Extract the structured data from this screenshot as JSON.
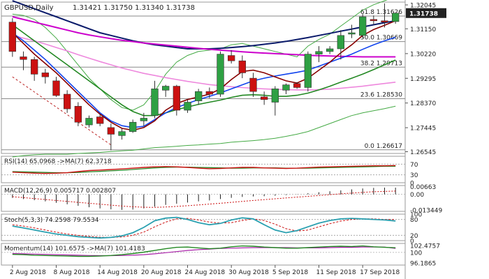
{
  "chart_data": {
    "type": "candlestick",
    "header": {
      "symbol_tf": "GBPUSD,Daily",
      "ohlc_text": "1.31421 1.31750 1.31340 1.31738"
    },
    "x_labels": [
      "2 Aug 2018",
      "8 Aug 2018",
      "14 Aug 2018",
      "20 Aug 2018",
      "24 Aug 2018",
      "30 Aug 2018",
      "5 Sep 2018",
      "11 Sep 2018",
      "17 Sep 2018"
    ],
    "x_label_index": [
      0,
      4,
      8,
      12,
      16,
      20,
      24,
      28,
      32
    ],
    "price_axis": {
      "ticks": [
        "1.32045",
        "1.31150",
        "1.30220",
        "1.29295",
        "1.28370",
        "1.27445",
        "1.26545"
      ],
      "tick_values": [
        1.32045,
        1.3115,
        1.3022,
        1.29295,
        1.2837,
        1.27445,
        1.26545
      ],
      "ylim": [
        1.2648,
        1.3215
      ],
      "current_price": "1.31738",
      "current_value": 1.31738
    },
    "fib_levels": [
      {
        "label": "61.8 1.31626",
        "value": 1.31626
      },
      {
        "label": "50.0 1.30669",
        "value": 1.30669
      },
      {
        "label": "38.2 1.29713",
        "value": 1.29713
      },
      {
        "label": "23.6 1.28530",
        "value": 1.2853
      },
      {
        "label": "0.0 1.26617",
        "value": 1.26617
      }
    ],
    "candles": [
      {
        "o": 1.314,
        "h": 1.3155,
        "l": 1.301,
        "c": 1.303
      },
      {
        "o": 1.301,
        "h": 1.303,
        "l": 1.296,
        "c": 1.3
      },
      {
        "o": 1.3,
        "h": 1.301,
        "l": 1.292,
        "c": 1.2945
      },
      {
        "o": 1.295,
        "h": 1.2965,
        "l": 1.291,
        "c": 1.2935
      },
      {
        "o": 1.292,
        "h": 1.2935,
        "l": 1.286,
        "c": 1.2865
      },
      {
        "o": 1.287,
        "h": 1.2885,
        "l": 1.28,
        "c": 1.2815
      },
      {
        "o": 1.2825,
        "h": 1.284,
        "l": 1.275,
        "c": 1.2765
      },
      {
        "o": 1.2755,
        "h": 1.279,
        "l": 1.2745,
        "c": 1.278
      },
      {
        "o": 1.2785,
        "h": 1.2795,
        "l": 1.275,
        "c": 1.276
      },
      {
        "o": 1.2745,
        "h": 1.276,
        "l": 1.266,
        "c": 1.272
      },
      {
        "o": 1.2715,
        "h": 1.274,
        "l": 1.27,
        "c": 1.273
      },
      {
        "o": 1.273,
        "h": 1.2775,
        "l": 1.2725,
        "c": 1.2765
      },
      {
        "o": 1.277,
        "h": 1.28,
        "l": 1.275,
        "c": 1.278
      },
      {
        "o": 1.279,
        "h": 1.292,
        "l": 1.278,
        "c": 1.289
      },
      {
        "o": 1.2885,
        "h": 1.2905,
        "l": 1.286,
        "c": 1.29
      },
      {
        "o": 1.29,
        "h": 1.2905,
        "l": 1.279,
        "c": 1.281
      },
      {
        "o": 1.281,
        "h": 1.285,
        "l": 1.28,
        "c": 1.284
      },
      {
        "o": 1.2845,
        "h": 1.289,
        "l": 1.283,
        "c": 1.288
      },
      {
        "o": 1.288,
        "h": 1.2895,
        "l": 1.2855,
        "c": 1.287
      },
      {
        "o": 1.287,
        "h": 1.303,
        "l": 1.286,
        "c": 1.302
      },
      {
        "o": 1.3015,
        "h": 1.3035,
        "l": 1.2985,
        "c": 1.2995
      },
      {
        "o": 1.2995,
        "h": 1.3015,
        "l": 1.293,
        "c": 1.295
      },
      {
        "o": 1.293,
        "h": 1.295,
        "l": 1.286,
        "c": 1.288
      },
      {
        "o": 1.286,
        "h": 1.288,
        "l": 1.283,
        "c": 1.285
      },
      {
        "o": 1.284,
        "h": 1.29,
        "l": 1.279,
        "c": 1.289
      },
      {
        "o": 1.2885,
        "h": 1.291,
        "l": 1.287,
        "c": 1.2905
      },
      {
        "o": 1.291,
        "h": 1.2915,
        "l": 1.289,
        "c": 1.2895
      },
      {
        "o": 1.2895,
        "h": 1.303,
        "l": 1.288,
        "c": 1.302
      },
      {
        "o": 1.302,
        "h": 1.305,
        "l": 1.299,
        "c": 1.303
      },
      {
        "o": 1.303,
        "h": 1.305,
        "l": 1.302,
        "c": 1.304
      },
      {
        "o": 1.304,
        "h": 1.311,
        "l": 1.3,
        "c": 1.309
      },
      {
        "o": 1.3095,
        "h": 1.313,
        "l": 1.308,
        "c": 1.31
      },
      {
        "o": 1.309,
        "h": 1.317,
        "l": 1.308,
        "c": 1.316
      },
      {
        "o": 1.315,
        "h": 1.3165,
        "l": 1.313,
        "c": 1.3145
      },
      {
        "o": 1.3145,
        "h": 1.321,
        "l": 1.312,
        "c": 1.314
      },
      {
        "o": 1.3142,
        "h": 1.3175,
        "l": 1.3134,
        "c": 1.31738
      }
    ],
    "ma_price": [
      {
        "name": "navy",
        "color": "#0a1a6a",
        "values": [
          1.322,
          1.3205,
          1.319,
          1.3175,
          1.316,
          1.3145,
          1.313,
          1.3115,
          1.31,
          1.309,
          1.308,
          1.307,
          1.3062,
          1.3055,
          1.305,
          1.3045,
          1.304,
          1.304,
          1.304,
          1.3042,
          1.3045,
          1.3048,
          1.3052,
          1.3057,
          1.3062,
          1.3068,
          1.3075,
          1.3082,
          1.309,
          1.3098,
          1.3106,
          1.3114,
          1.3122,
          1.313,
          1.3138,
          1.3145
        ]
      },
      {
        "name": "magenta",
        "color": "#cc00cc",
        "values": [
          1.316,
          1.315,
          1.314,
          1.313,
          1.312,
          1.311,
          1.31,
          1.3092,
          1.3085,
          1.3078,
          1.3072,
          1.3067,
          1.3062,
          1.3058,
          1.3054,
          1.305,
          1.3046,
          1.3042,
          1.3038,
          1.3035,
          1.3032,
          1.3029,
          1.3026,
          1.3024,
          1.3022,
          1.302,
          1.3018,
          1.3016,
          1.3014,
          1.3013,
          1.3012,
          1.3011,
          1.301,
          1.301,
          1.301,
          1.301
        ]
      },
      {
        "name": "pink",
        "color": "#ee88dd",
        "values": [
          1.309,
          1.308,
          1.307,
          1.3058,
          1.3045,
          1.3032,
          1.3018,
          1.3005,
          1.2992,
          1.298,
          1.2968,
          1.2958,
          1.2948,
          1.294,
          1.2932,
          1.2925,
          1.2918,
          1.2912,
          1.2906,
          1.2902,
          1.2898,
          1.2895,
          1.2892,
          1.289,
          1.2888,
          1.2887,
          1.2886,
          1.2886,
          1.2887,
          1.2889,
          1.2892,
          1.2896,
          1.29,
          1.2905,
          1.291,
          1.2915
        ]
      },
      {
        "name": "green",
        "color": "#228822",
        "values": [
          1.313,
          1.31,
          1.307,
          1.304,
          1.301,
          1.298,
          1.295,
          1.292,
          1.289,
          1.286,
          1.283,
          1.2805,
          1.279,
          1.279,
          1.28,
          1.2812,
          1.2822,
          1.2832,
          1.284,
          1.2848,
          1.2858,
          1.2866,
          1.2868,
          1.2866,
          1.2862,
          1.2862,
          1.2866,
          1.2874,
          1.2886,
          1.29,
          1.2915,
          1.293,
          1.2945,
          1.2962,
          1.298,
          1.2998
        ]
      },
      {
        "name": "blue",
        "color": "#1144ee",
        "values": [
          1.31,
          1.307,
          1.3035,
          1.3,
          1.296,
          1.292,
          1.288,
          1.284,
          1.28,
          1.277,
          1.2752,
          1.2745,
          1.275,
          1.2775,
          1.28,
          1.282,
          1.2835,
          1.285,
          1.2862,
          1.2875,
          1.289,
          1.2905,
          1.292,
          1.293,
          1.2938,
          1.2945,
          1.2952,
          1.296,
          1.2975,
          1.299,
          1.3005,
          1.302,
          1.3038,
          1.3055,
          1.307,
          1.3083
        ]
      },
      {
        "name": "maroon",
        "color": "#880000",
        "values": [
          1.31,
          1.306,
          1.302,
          1.2985,
          1.295,
          1.291,
          1.287,
          1.283,
          1.2795,
          1.2765,
          1.2742,
          1.2735,
          1.2745,
          1.277,
          1.281,
          1.2835,
          1.285,
          1.286,
          1.287,
          1.289,
          1.2925,
          1.2955,
          1.296,
          1.295,
          1.2935,
          1.292,
          1.2912,
          1.293,
          1.296,
          1.299,
          1.3025,
          1.3055,
          1.309,
          1.3112,
          1.3128,
          1.3145
        ]
      }
    ],
    "bands": {
      "color": "#44aa44",
      "upper": [
        1.317,
        1.3165,
        1.315,
        1.312,
        1.308,
        1.303,
        1.298,
        1.293,
        1.289,
        1.285,
        1.282,
        1.281,
        1.283,
        1.288,
        1.2945,
        1.299,
        1.3015,
        1.303,
        1.3035,
        1.304,
        1.3055,
        1.306,
        1.305,
        1.304,
        1.303,
        1.302,
        1.301,
        1.305,
        1.3075,
        1.3095,
        1.3125,
        1.3155,
        1.3185,
        1.3205,
        1.322,
        1.3235
      ],
      "lower": [
        1.2635,
        1.264,
        1.2643,
        1.2645,
        1.2645,
        1.2645,
        1.2648,
        1.265,
        1.2652,
        1.2655,
        1.2658,
        1.266,
        1.2665,
        1.267,
        1.2672,
        1.2675,
        1.2678,
        1.268,
        1.2683,
        1.2685,
        1.269,
        1.2693,
        1.2696,
        1.27,
        1.2705,
        1.2712,
        1.272,
        1.273,
        1.2745,
        1.276,
        1.2775,
        1.279,
        1.28,
        1.2808,
        1.2816,
        1.2825
      ]
    },
    "trend_line": {
      "color": "#bb2222",
      "from_value": 1.2935,
      "to_value": 1.268,
      "from_index": 0,
      "to_index": 9
    },
    "rsi": {
      "label": "RSI(14) 65.0968 ->MA(7) 62.3718",
      "ticks": [
        "70",
        "30",
        "0"
      ],
      "tick_values": [
        70,
        30,
        0
      ],
      "ylim": [
        0,
        100
      ],
      "rsi": [
        40,
        38,
        36,
        35,
        36,
        38,
        42,
        46,
        48,
        50,
        52,
        55,
        58,
        60,
        61,
        60,
        58,
        55,
        53,
        54,
        56,
        58,
        58,
        56,
        55,
        54,
        55,
        57,
        59,
        60,
        61,
        62,
        63,
        64,
        64,
        65.1
      ],
      "ma": [
        42,
        41,
        40,
        39,
        38,
        38,
        39,
        41,
        43,
        45,
        47,
        50,
        53,
        56,
        58,
        59,
        59,
        58,
        57,
        56,
        55,
        55,
        56,
        56,
        56,
        55,
        55,
        55,
        56,
        57,
        58,
        59,
        60,
        61,
        62,
        62.4
      ]
    },
    "macd": {
      "label": "MACD(12,26,9) 0.005717 0.002807",
      "ticks": [
        "0.00663",
        "0.00",
        "-0.013449"
      ],
      "tick_values": [
        0.00663,
        0,
        -0.013449
      ],
      "ylim": [
        -0.0145,
        0.0075
      ],
      "hist": [
        -0.003,
        -0.004,
        -0.005,
        -0.006,
        -0.0072,
        -0.0085,
        -0.0098,
        -0.011,
        -0.012,
        -0.0128,
        -0.0132,
        -0.013,
        -0.012,
        -0.0105,
        -0.009,
        -0.008,
        -0.007,
        -0.006,
        -0.0052,
        -0.004,
        -0.003,
        -0.0022,
        -0.0018,
        -0.0016,
        -0.0012,
        -0.0006,
        0.0002,
        0.001,
        0.0018,
        0.0026,
        0.0034,
        0.0042,
        0.005,
        0.0055,
        0.0057,
        0.0057
      ],
      "signal": [
        -0.002,
        -0.0028,
        -0.0036,
        -0.0044,
        -0.0052,
        -0.006,
        -0.0068,
        -0.0076,
        -0.0084,
        -0.0092,
        -0.01,
        -0.0106,
        -0.011,
        -0.0111,
        -0.0108,
        -0.0103,
        -0.0097,
        -0.009,
        -0.0083,
        -0.0076,
        -0.0068,
        -0.006,
        -0.0052,
        -0.0045,
        -0.0038,
        -0.0031,
        -0.0024,
        -0.0017,
        -0.001,
        -0.0003,
        0.0004,
        0.0011,
        0.0017,
        0.0022,
        0.0025,
        0.0028
      ]
    },
    "stoch": {
      "label": "Stoch(5,3,3) 74.2598 79.5534",
      "ticks": [
        "100",
        "80",
        "20",
        "0"
      ],
      "tick_values": [
        100,
        80,
        20,
        0
      ],
      "ylim": [
        0,
        100
      ],
      "k": [
        55,
        48,
        40,
        32,
        25,
        20,
        15,
        12,
        10,
        12,
        18,
        30,
        50,
        75,
        85,
        88,
        80,
        68,
        60,
        65,
        78,
        86,
        82,
        60,
        40,
        30,
        38,
        52,
        66,
        76,
        82,
        84,
        82,
        80,
        78,
        74.3
      ],
      "d": [
        60,
        55,
        48,
        40,
        32,
        25,
        20,
        16,
        13,
        12,
        14,
        20,
        32,
        52,
        70,
        82,
        84,
        78,
        70,
        66,
        68,
        76,
        82,
        76,
        62,
        45,
        36,
        40,
        52,
        64,
        74,
        80,
        82,
        82,
        80,
        79.6
      ]
    },
    "momentum": {
      "label": "Momentum(14) 101.6575 ->MA(7) 101.4183",
      "ticks": [
        "102.4757",
        "100",
        "96.1865"
      ],
      "tick_values": [
        102.4757,
        100,
        96.1865
      ],
      "ylim": [
        95.5,
        103.2
      ],
      "mom": [
        99.3,
        99.2,
        99.0,
        98.9,
        98.8,
        98.7,
        98.6,
        98.6,
        98.7,
        98.9,
        99.2,
        99.6,
        100.1,
        100.7,
        101.3,
        101.8,
        101.9,
        101.6,
        101.3,
        101.5,
        102.0,
        102.3,
        102.2,
        101.9,
        101.7,
        101.5,
        101.5,
        101.7,
        101.9,
        102.1,
        102.2,
        102.1,
        102.3,
        102.0,
        101.8,
        101.66
      ],
      "ma": [
        99.6,
        99.5,
        99.4,
        99.3,
        99.2,
        99.1,
        99.0,
        98.9,
        98.85,
        98.85,
        98.9,
        99.0,
        99.2,
        99.5,
        99.9,
        100.3,
        100.7,
        101.0,
        101.2,
        101.4,
        101.5,
        101.6,
        101.7,
        101.7,
        101.7,
        101.7,
        101.6,
        101.6,
        101.6,
        101.7,
        101.8,
        101.8,
        101.9,
        101.9,
        101.9,
        101.42
      ]
    },
    "colors": {
      "bull": "#2ea043",
      "bear": "#cc1111",
      "grid": "#c8c8c8",
      "text": "#222222",
      "panel_border": "#9a9a9a",
      "rsi": "#cc1111",
      "rsi_ma": "#2a8a2a",
      "stoch_k": "#2aa0b0",
      "stoch_d": "#cc1111",
      "mom": "#228822",
      "mom_ma": "#aa22aa",
      "macd_hist": "#222222",
      "macd_signal": "#cc1111",
      "price_box": "#222222"
    }
  }
}
